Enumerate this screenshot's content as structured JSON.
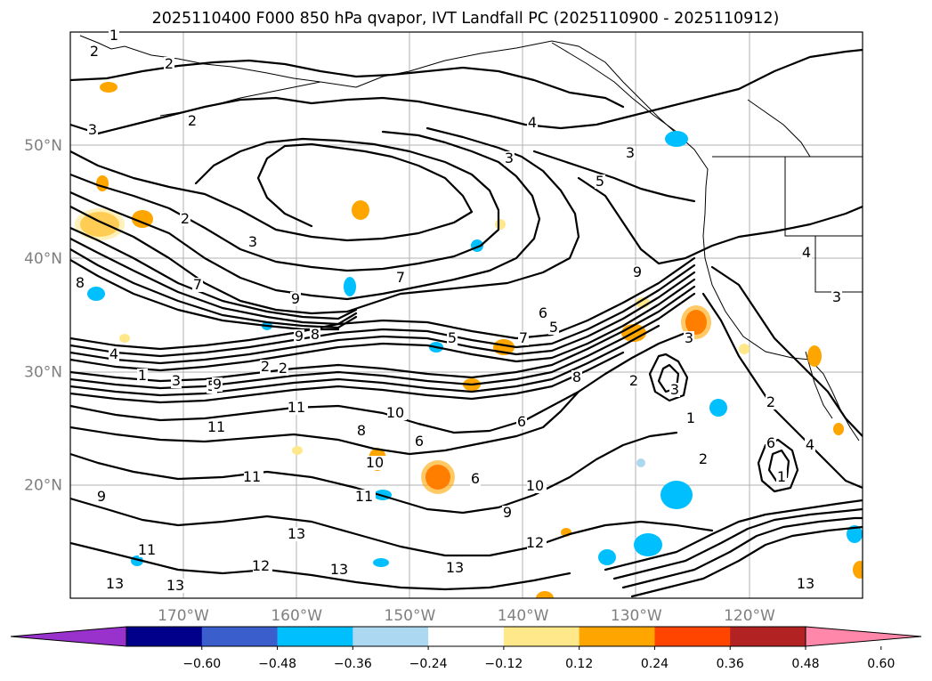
{
  "title": "2025110400 F000 850 hPa qvapor, IVT Landfall PC (2025110900 - 2025110912)",
  "lat_labels": [
    {
      "text": "50°N",
      "lat": 50
    },
    {
      "text": "40°N",
      "lat": 40
    },
    {
      "text": "30°N",
      "lat": 30
    },
    {
      "text": "20°N",
      "lat": 20
    }
  ],
  "lon_labels": [
    {
      "text": "170°W",
      "lon": -170
    },
    {
      "text": "160°W",
      "lon": -160
    },
    {
      "text": "150°W",
      "lon": -150
    },
    {
      "text": "140°W",
      "lon": -140
    },
    {
      "text": "130°W",
      "lon": -130
    },
    {
      "text": "120°W",
      "lon": -120
    }
  ],
  "colorbar": {
    "colors": [
      "#9932cc",
      "#00008b",
      "#3a5fcd",
      "#00bfff",
      "#add8f2",
      "#ffffff",
      "#ffe88a",
      "#ffa500",
      "#ff4500",
      "#b22222",
      "#ff88aa"
    ],
    "tick_labels": [
      "−0.60",
      "−0.48",
      "−0.36",
      "−0.24",
      "−0.12",
      "0.12",
      "0.24",
      "0.36",
      "0.48",
      "0.60"
    ]
  },
  "contour_labels": [
    {
      "text": "2"
    },
    {
      "text": "1"
    },
    {
      "text": "2"
    },
    {
      "text": "3"
    },
    {
      "text": "4"
    },
    {
      "text": "2"
    },
    {
      "text": "3"
    },
    {
      "text": "5"
    },
    {
      "text": "3"
    },
    {
      "text": "2"
    },
    {
      "text": "3"
    },
    {
      "text": "7"
    },
    {
      "text": "9"
    },
    {
      "text": "7"
    },
    {
      "text": "8"
    },
    {
      "text": "8"
    },
    {
      "text": "9"
    },
    {
      "text": "5"
    },
    {
      "text": "4"
    },
    {
      "text": "3"
    },
    {
      "text": "2"
    },
    {
      "text": "5"
    },
    {
      "text": "2"
    },
    {
      "text": "1"
    },
    {
      "text": "9"
    },
    {
      "text": "11"
    },
    {
      "text": "11"
    },
    {
      "text": "10"
    },
    {
      "text": "8"
    },
    {
      "text": "6"
    },
    {
      "text": "11"
    },
    {
      "text": "10"
    },
    {
      "text": "11"
    },
    {
      "text": "9"
    },
    {
      "text": "6"
    },
    {
      "text": "10"
    },
    {
      "text": "9"
    },
    {
      "text": "12"
    },
    {
      "text": "13"
    },
    {
      "text": "13"
    },
    {
      "text": "12"
    },
    {
      "text": "13"
    },
    {
      "text": "11"
    },
    {
      "text": "13"
    },
    {
      "text": "13"
    },
    {
      "text": "6"
    },
    {
      "text": "5"
    },
    {
      "text": "8"
    },
    {
      "text": "2"
    },
    {
      "text": "3"
    },
    {
      "text": "1"
    },
    {
      "text": "2"
    },
    {
      "text": "4"
    },
    {
      "text": "3"
    },
    {
      "text": "3"
    },
    {
      "text": "2"
    },
    {
      "text": "4"
    },
    {
      "text": "6"
    },
    {
      "text": "1"
    },
    {
      "text": "13"
    },
    {
      "text": "6"
    },
    {
      "text": "7"
    },
    {
      "text": "9"
    }
  ]
}
